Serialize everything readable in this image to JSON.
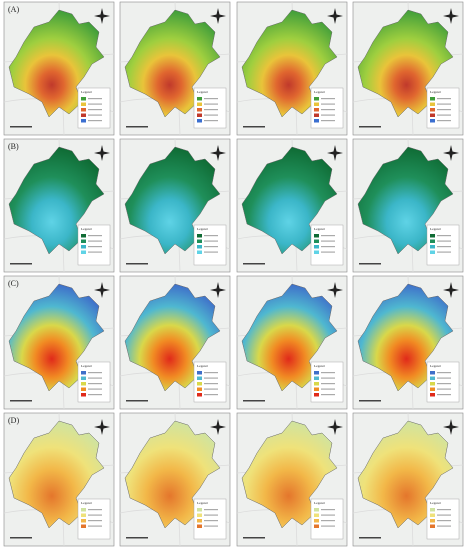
{
  "panels": {
    "rows": [
      {
        "label": "(A)"
      },
      {
        "label": "(B)"
      },
      {
        "label": "(C)"
      },
      {
        "label": "(D)"
      }
    ],
    "legend_title": "Legend"
  }
}
